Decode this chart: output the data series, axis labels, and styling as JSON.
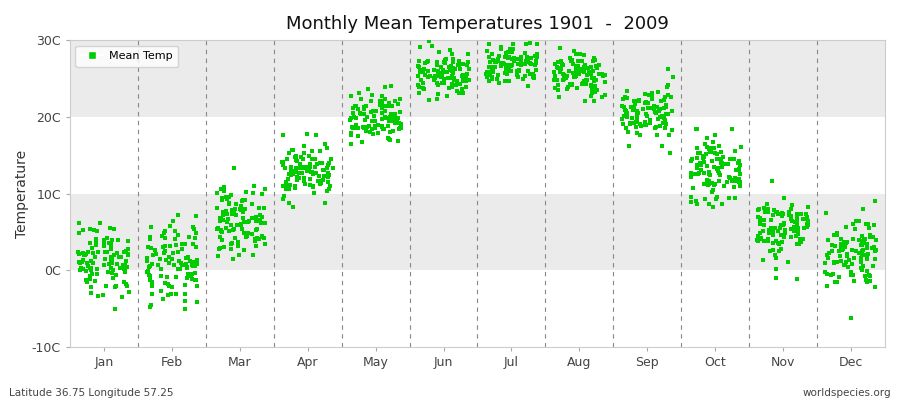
{
  "title": "Monthly Mean Temperatures 1901  -  2009",
  "ylabel": "Temperature",
  "subtitle_left": "Latitude 36.75 Longitude 57.25",
  "subtitle_right": "worldspecies.org",
  "ylim": [
    -10,
    30
  ],
  "yticks": [
    -10,
    0,
    10,
    20,
    30
  ],
  "ytick_labels": [
    "-10C",
    "0C",
    "10C",
    "20C",
    "30C"
  ],
  "months": [
    "Jan",
    "Feb",
    "Mar",
    "Apr",
    "May",
    "Jun",
    "Jul",
    "Aug",
    "Sep",
    "Oct",
    "Nov",
    "Dec"
  ],
  "dot_color": "#00CC00",
  "band_colors": [
    "#FFFFFF",
    "#EBEBEB",
    "#FFFFFF",
    "#EBEBEB"
  ],
  "fig_bg_color": "#FFFFFF",
  "legend_label": "Mean Temp",
  "n_years": 109,
  "monthly_means": [
    1.5,
    0.5,
    6.5,
    13.0,
    19.5,
    25.5,
    27.0,
    25.5,
    20.5,
    13.0,
    5.5,
    2.5
  ],
  "monthly_stds": [
    2.5,
    2.8,
    2.2,
    1.8,
    1.8,
    1.5,
    1.5,
    1.5,
    1.8,
    2.0,
    2.2,
    2.5
  ],
  "seed": 42
}
